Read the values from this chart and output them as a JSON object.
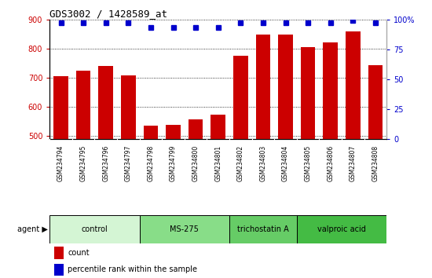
{
  "title": "GDS3002 / 1428589_at",
  "samples": [
    "GSM234794",
    "GSM234795",
    "GSM234796",
    "GSM234797",
    "GSM234798",
    "GSM234799",
    "GSM234800",
    "GSM234801",
    "GSM234802",
    "GSM234803",
    "GSM234804",
    "GSM234805",
    "GSM234806",
    "GSM234807",
    "GSM234808"
  ],
  "counts": [
    705,
    725,
    740,
    708,
    535,
    538,
    558,
    573,
    775,
    847,
    847,
    806,
    820,
    858,
    743
  ],
  "percentiles": [
    97,
    97,
    97,
    97,
    93,
    93,
    93,
    93,
    97,
    97,
    97,
    97,
    97,
    99,
    97
  ],
  "groups": [
    {
      "label": "control",
      "start": 0,
      "end": 4,
      "color": "#d4f5d4"
    },
    {
      "label": "MS-275",
      "start": 4,
      "end": 8,
      "color": "#88dd88"
    },
    {
      "label": "trichostatin A",
      "start": 8,
      "end": 11,
      "color": "#66cc66"
    },
    {
      "label": "valproic acid",
      "start": 11,
      "end": 15,
      "color": "#44bb44"
    }
  ],
  "bar_color": "#cc0000",
  "dot_color": "#0000cc",
  "ylim_left": [
    490,
    900
  ],
  "ylim_right": [
    0,
    100
  ],
  "yticks_left": [
    500,
    600,
    700,
    800,
    900
  ],
  "yticks_right": [
    0,
    25,
    50,
    75,
    100
  ],
  "grid_color": "#000000",
  "background_color": "#ffffff",
  "tick_label_color_left": "#cc0000",
  "tick_label_color_right": "#0000cc",
  "bar_width": 0.65,
  "xticklabel_bg": "#cccccc",
  "agent_label": "agent",
  "legend_count_label": "count",
  "legend_pct_label": "percentile rank within the sample"
}
